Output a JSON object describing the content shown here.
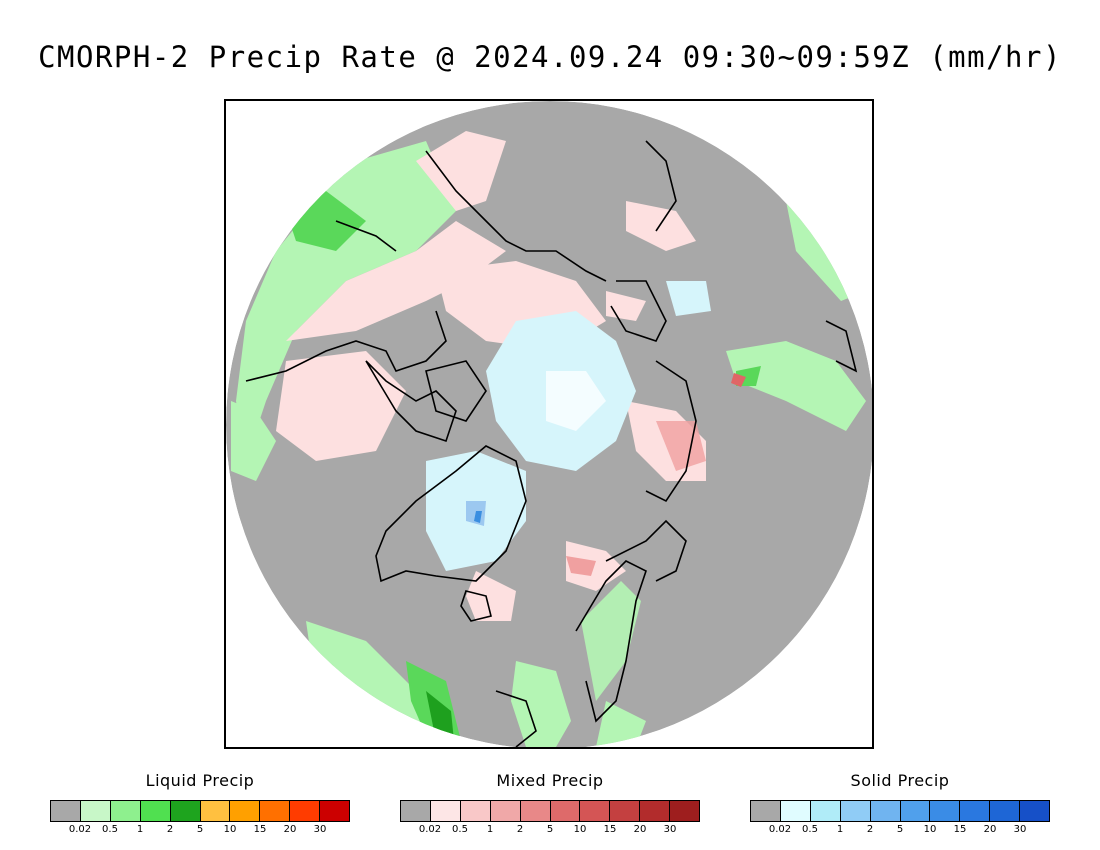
{
  "title": "CMORPH-2 Precip Rate @ 2024.09.24 09:30~09:59Z (mm/hr)",
  "map": {
    "projection": "north-polar-stereographic",
    "colors": {
      "no_precip": "#a8a8a8",
      "outside": "#ffffff",
      "frame": "#000000",
      "coastline": "#000000",
      "liquid_light": "#b4f5b4",
      "liquid_mid": "#5ad85a",
      "liquid_dark": "#1ea01e",
      "mixed_light": "#fde0e0",
      "mixed_mid": "#f0a0a0",
      "mixed_red": "#e06666",
      "solid_light": "#d6f5fb",
      "solid_mid": "#9cc8f0",
      "solid_dark": "#3a8ee0"
    }
  },
  "legends": [
    {
      "title": "Liquid Precip",
      "colors": [
        "#a8a8a8",
        "#c8f7c8",
        "#8ef08e",
        "#50e050",
        "#1ea41e",
        "#ffc040",
        "#ffa000",
        "#ff7000",
        "#ff3c00",
        "#cc0000"
      ],
      "ticks": [
        "0.02",
        "0.5",
        "1",
        "2",
        "5",
        "10",
        "15",
        "20",
        "30"
      ]
    },
    {
      "title": "Mixed Precip",
      "colors": [
        "#a8a8a8",
        "#fde6e6",
        "#f9c8c8",
        "#f0a8a8",
        "#e88888",
        "#de6a6a",
        "#d45555",
        "#c44040",
        "#b22c2c",
        "#9e1e1e"
      ],
      "ticks": [
        "0.02",
        "0.5",
        "1",
        "2",
        "5",
        "10",
        "15",
        "20",
        "30"
      ]
    },
    {
      "title": "Solid Precip",
      "colors": [
        "#a8a8a8",
        "#e0fcff",
        "#b0ecf8",
        "#90ccf6",
        "#70b4f0",
        "#50a0ec",
        "#3a8ce6",
        "#2a78e0",
        "#1e66d6",
        "#1650c8"
      ],
      "ticks": [
        "0.02",
        "0.5",
        "1",
        "2",
        "5",
        "10",
        "15",
        "20",
        "30"
      ]
    }
  ]
}
